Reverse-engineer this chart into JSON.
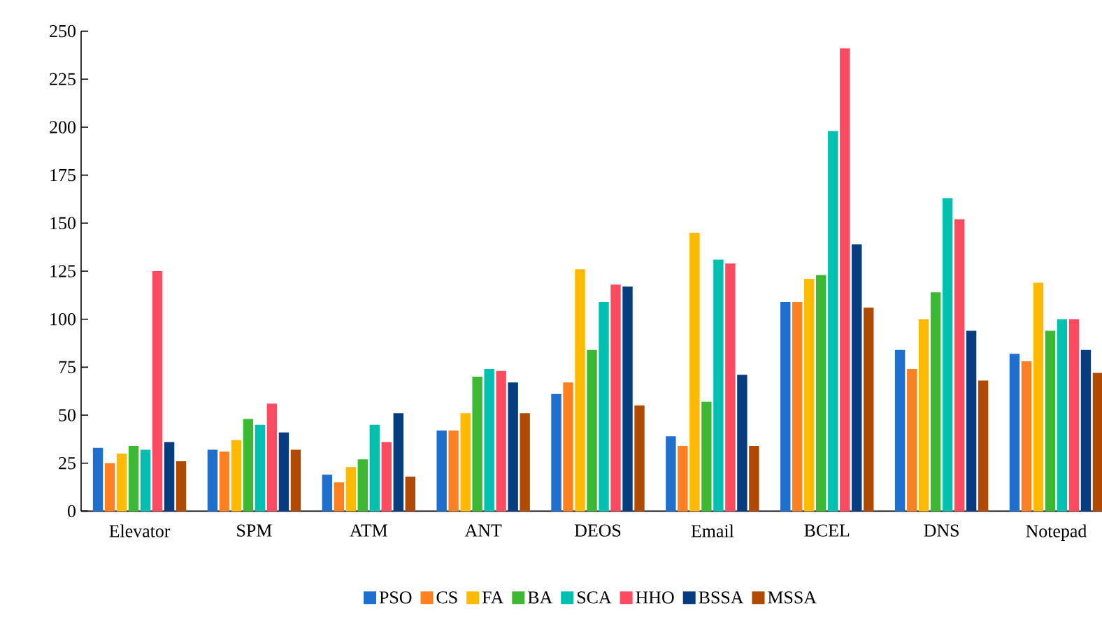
{
  "chart_data": {
    "type": "bar",
    "categories": [
      "Elevator",
      "SPM",
      "ATM",
      "ANT",
      "DEOS",
      "Email",
      "BCEL",
      "DNS",
      "Notepad"
    ],
    "series": [
      {
        "name": "PSO",
        "color": "#1f6fcf",
        "values": [
          33,
          32,
          19,
          42,
          61,
          39,
          109,
          84,
          82
        ]
      },
      {
        "name": "CS",
        "color": "#ff8020",
        "values": [
          25,
          31,
          15,
          42,
          67,
          34,
          109,
          74,
          78
        ]
      },
      {
        "name": "FA",
        "color": "#ffba00",
        "values": [
          30,
          37,
          23,
          51,
          126,
          145,
          121,
          100,
          119
        ]
      },
      {
        "name": "BA",
        "color": "#3cb832",
        "values": [
          34,
          48,
          27,
          70,
          84,
          57,
          123,
          114,
          94
        ]
      },
      {
        "name": "SCA",
        "color": "#00c0b0",
        "values": [
          32,
          45,
          45,
          74,
          109,
          131,
          198,
          163,
          100
        ]
      },
      {
        "name": "HHO",
        "color": "#ff4a60",
        "values": [
          125,
          56,
          36,
          73,
          118,
          129,
          241,
          152,
          100
        ]
      },
      {
        "name": "BSSA",
        "color": "#053d80",
        "values": [
          36,
          41,
          51,
          67,
          117,
          71,
          139,
          94,
          84
        ]
      },
      {
        "name": "MSSA",
        "color": "#b04a00",
        "values": [
          26,
          32,
          18,
          51,
          55,
          34,
          106,
          68,
          72
        ]
      }
    ],
    "ylim": [
      0,
      250
    ],
    "yticks": [
      0,
      25,
      50,
      75,
      100,
      125,
      150,
      175,
      200,
      225,
      250
    ],
    "grid": false,
    "legend": "bottom"
  }
}
